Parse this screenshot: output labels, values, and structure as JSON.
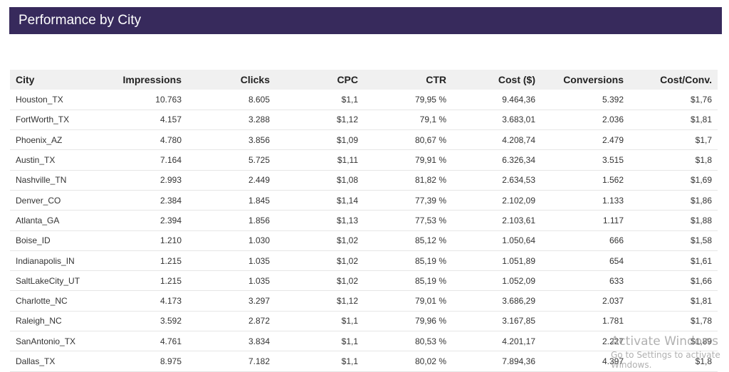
{
  "header": {
    "title": "Performance by City",
    "background_color": "#372a5c"
  },
  "table": {
    "columns": [
      "City",
      "Impressions",
      "Clicks",
      "CPC",
      "CTR",
      "Cost ($)",
      "Conversions",
      "Cost/Conv."
    ],
    "rows": [
      [
        "Houston_TX",
        "10.763",
        "8.605",
        "$1,1",
        "79,95 %",
        "9.464,36",
        "5.392",
        "$1,76"
      ],
      [
        "FortWorth_TX",
        "4.157",
        "3.288",
        "$1,12",
        "79,1 %",
        "3.683,01",
        "2.036",
        "$1,81"
      ],
      [
        "Phoenix_AZ",
        "4.780",
        "3.856",
        "$1,09",
        "80,67 %",
        "4.208,74",
        "2.479",
        "$1,7"
      ],
      [
        "Austin_TX",
        "7.164",
        "5.725",
        "$1,11",
        "79,91 %",
        "6.326,34",
        "3.515",
        "$1,8"
      ],
      [
        "Nashville_TN",
        "2.993",
        "2.449",
        "$1,08",
        "81,82 %",
        "2.634,53",
        "1.562",
        "$1,69"
      ],
      [
        "Denver_CO",
        "2.384",
        "1.845",
        "$1,14",
        "77,39 %",
        "2.102,09",
        "1.133",
        "$1,86"
      ],
      [
        "Atlanta_GA",
        "2.394",
        "1.856",
        "$1,13",
        "77,53 %",
        "2.103,61",
        "1.117",
        "$1,88"
      ],
      [
        "Boise_ID",
        "1.210",
        "1.030",
        "$1,02",
        "85,12 %",
        "1.050,64",
        "666",
        "$1,58"
      ],
      [
        "Indianapolis_IN",
        "1.215",
        "1.035",
        "$1,02",
        "85,19 %",
        "1.051,89",
        "654",
        "$1,61"
      ],
      [
        "SaltLakeCity_UT",
        "1.215",
        "1.035",
        "$1,02",
        "85,19 %",
        "1.052,09",
        "633",
        "$1,66"
      ],
      [
        "Charlotte_NC",
        "4.173",
        "3.297",
        "$1,12",
        "79,01 %",
        "3.686,29",
        "2.037",
        "$1,81"
      ],
      [
        "Raleigh_NC",
        "3.592",
        "2.872",
        "$1,1",
        "79,96 %",
        "3.167,85",
        "1.781",
        "$1,78"
      ],
      [
        "SanAntonio_TX",
        "4.761",
        "3.834",
        "$1,1",
        "80,53 %",
        "4.201,17",
        "2.227",
        "$1,89"
      ],
      [
        "Dallas_TX",
        "8.975",
        "7.182",
        "$1,1",
        "80,02 %",
        "7.894,36",
        "4.397",
        "$1,8"
      ]
    ]
  },
  "watermark": {
    "line1": "Activate Windows",
    "line2": "Go to Settings to activate Windows."
  }
}
